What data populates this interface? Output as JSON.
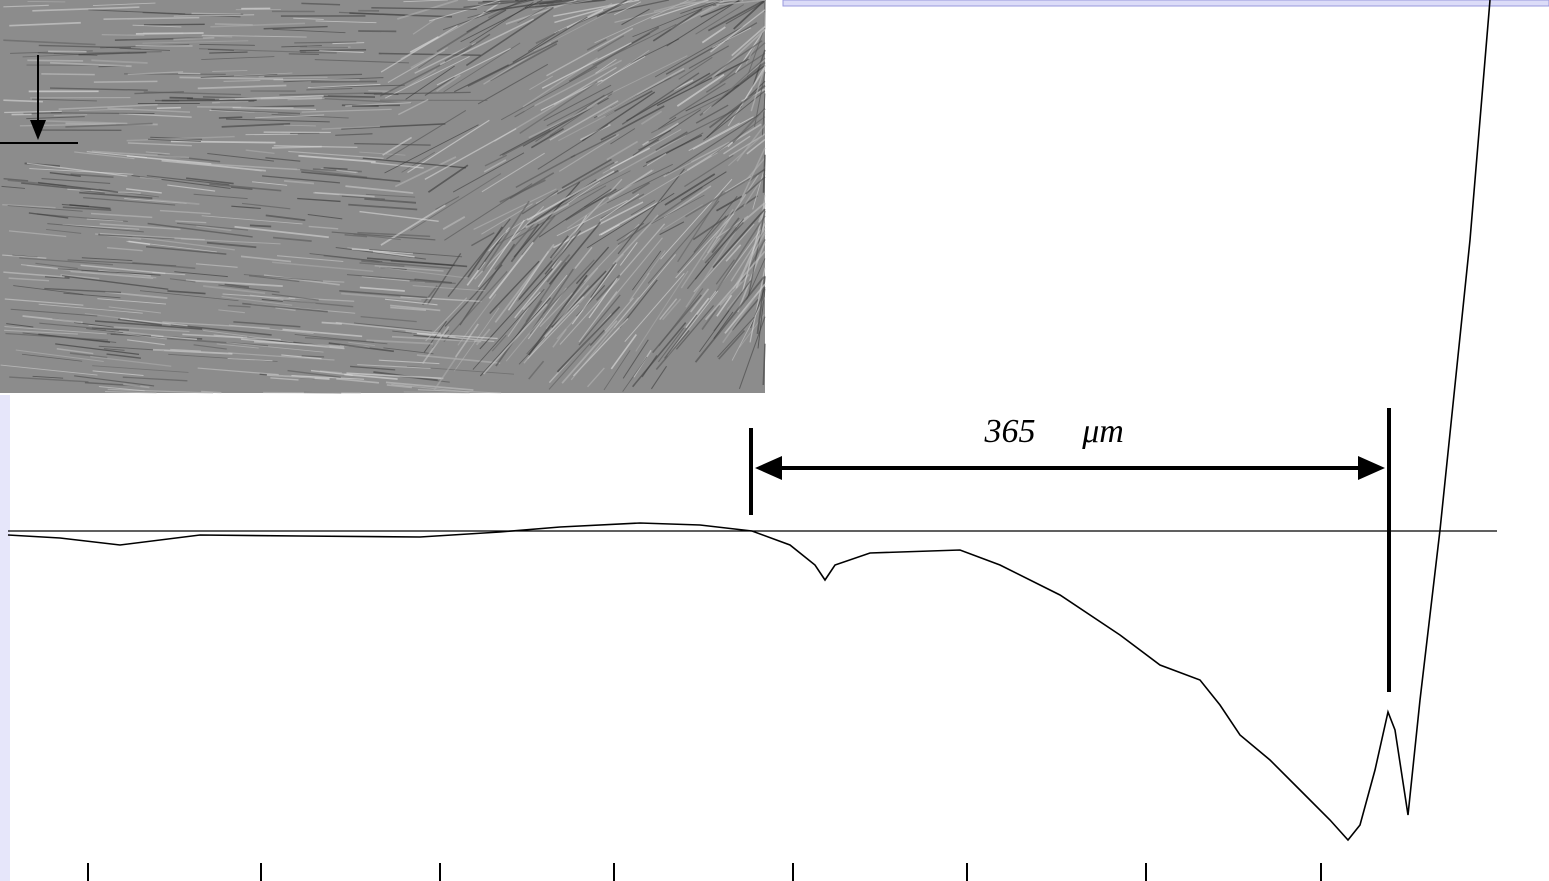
{
  "measurement": {
    "value": "365",
    "unit": "μm"
  }
}
